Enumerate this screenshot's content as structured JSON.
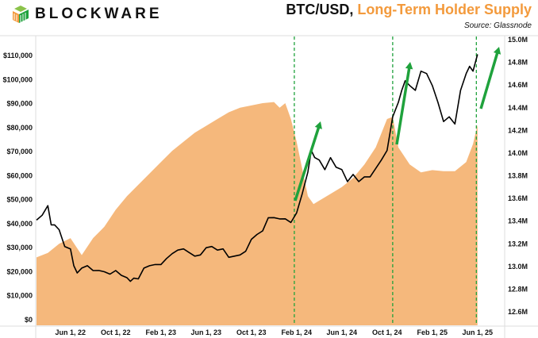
{
  "header": {
    "brand": "BLOCKWARE",
    "title_part1": "BTC/USD, ",
    "title_part2": "Long-Term Holder Supply",
    "source": "Source: Glassnode"
  },
  "colors": {
    "area": "#f5b87c",
    "line": "#000000",
    "arrow": "#1fa23c",
    "dashed": "#1fa23c"
  },
  "chart_data": {
    "type": "line+area",
    "title": "BTC/USD, Long-Term Holder Supply",
    "x_ticks": [
      "Jun 1, 22",
      "Oct 1, 22",
      "Feb 1, 23",
      "Jun 1, 23",
      "Oct 1, 23",
      "Feb 1, 24",
      "Jun 1, 24",
      "Oct 1, 24",
      "Feb 1, 25",
      "Jun 1, 25"
    ],
    "x_tick_months": [
      3,
      7,
      11,
      15,
      19,
      23,
      27,
      31,
      35,
      39
    ],
    "x_origin": "2022-03-01",
    "left_axis": {
      "label": "BTC/USD",
      "ticks": [
        "$0",
        "$10,000",
        "$20,000",
        "$30,000",
        "$40,000",
        "$50,000",
        "$60,000",
        "$70,000",
        "$80,000",
        "$90,000",
        "$100,000",
        "$110,000"
      ],
      "range": [
        0,
        110000
      ]
    },
    "right_axis": {
      "label": "Long-Term Holder Supply",
      "ticks": [
        "12.6M",
        "12.8M",
        "13.0M",
        "13.2M",
        "13.4M",
        "13.6M",
        "13.8M",
        "14.0M",
        "14.2M",
        "14.4M",
        "14.6M",
        "14.8M",
        "15.0M"
      ],
      "range": [
        12.6,
        15.0
      ]
    },
    "series": [
      {
        "name": "Long-Term Holder Supply (M BTC)",
        "type": "area",
        "axis": "right",
        "months": [
          0,
          1,
          2,
          3,
          4,
          5,
          6,
          7,
          8,
          9,
          10,
          11,
          12,
          13,
          14,
          15,
          16,
          17,
          18,
          19,
          20,
          21,
          21.5,
          22,
          22.5,
          23,
          24,
          24.5,
          25,
          26,
          27,
          28,
          29,
          30,
          31,
          31.5,
          32,
          33,
          34,
          35,
          36,
          37,
          38,
          38.6,
          39
        ],
        "values": [
          13.08,
          13.12,
          13.2,
          13.25,
          13.1,
          13.25,
          13.35,
          13.5,
          13.62,
          13.72,
          13.82,
          13.92,
          14.02,
          14.1,
          14.18,
          14.24,
          14.3,
          14.36,
          14.4,
          14.42,
          14.44,
          14.45,
          14.4,
          14.44,
          14.3,
          14.1,
          13.62,
          13.55,
          13.58,
          13.64,
          13.7,
          13.78,
          13.9,
          14.05,
          14.3,
          14.32,
          14.05,
          13.9,
          13.83,
          13.85,
          13.84,
          13.84,
          13.92,
          14.08,
          14.25
        ]
      },
      {
        "name": "BTC/USD",
        "type": "line",
        "axis": "left",
        "months": [
          0,
          0.5,
          1,
          1.3,
          1.6,
          2,
          2.5,
          3,
          3.3,
          3.6,
          4,
          4.5,
          5,
          5.5,
          6,
          6.5,
          7,
          7.5,
          8,
          8.3,
          8.6,
          9,
          9.5,
          10,
          10.5,
          11,
          11.5,
          12,
          12.5,
          13,
          13.5,
          14,
          14.5,
          15,
          15.5,
          16,
          16.5,
          17,
          17.5,
          18,
          18.5,
          19,
          19.5,
          20,
          20.5,
          21,
          21.5,
          22,
          22.5,
          23,
          23.5,
          24,
          24.3,
          24.6,
          25,
          25.5,
          26,
          26.5,
          27,
          27.5,
          28,
          28.5,
          29,
          29.5,
          30,
          30.5,
          31,
          31.5,
          32,
          32.3,
          32.6,
          33,
          33.5,
          34,
          34.5,
          35,
          35.5,
          36,
          36.5,
          37,
          37.5,
          38,
          38.3,
          38.6,
          39
        ],
        "values": [
          41000,
          44000,
          47000,
          40000,
          39000,
          38000,
          30000,
          30000,
          22000,
          20000,
          21000,
          23000,
          20000,
          21000,
          19500,
          19500,
          20000,
          19000,
          17000,
          16500,
          16800,
          17500,
          21000,
          23000,
          22500,
          23500,
          25000,
          28000,
          28500,
          30000,
          27500,
          27000,
          26500,
          30500,
          30000,
          29500,
          29000,
          26500,
          26000,
          27500,
          28000,
          34000,
          35000,
          37500,
          42000,
          43000,
          41500,
          42500,
          40000,
          45000,
          52000,
          62000,
          70000,
          68000,
          66000,
          63000,
          67000,
          64000,
          62000,
          58000,
          60000,
          58000,
          59000,
          60000,
          62500,
          67000,
          70000,
          85000,
          90000,
          96000,
          99000,
          98000,
          95000,
          104000,
          102000,
          98000,
          90000,
          83000,
          84000,
          82000,
          95000,
          103000,
          105000,
          104000,
          110000
        ]
      }
    ],
    "annotations": {
      "vertical_dashed_months": [
        22.8,
        31.5,
        38.9
      ],
      "arrows": 3
    }
  }
}
